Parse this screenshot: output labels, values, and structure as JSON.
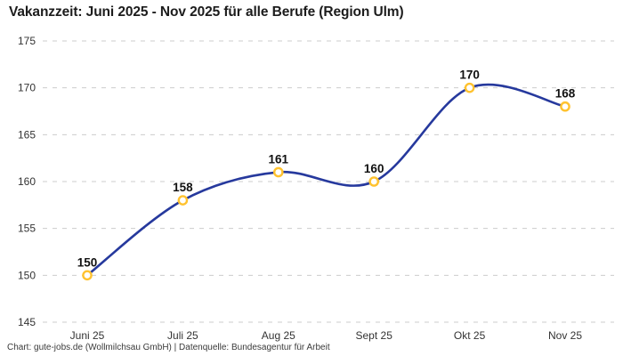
{
  "header": {
    "title": "Vakanzzeit: Juni 2025 - Nov 2025 für alle Berufe (Region Ulm)"
  },
  "footer": {
    "credit": "Chart: gute-jobs.de (Wollmilchsau GmbH) | Datenquelle: Bundesagentur für Arbeit"
  },
  "chart_data": {
    "type": "line",
    "title": "Vakanzzeit: Juni 2025 - Nov 2025 für alle Berufe (Region Ulm)",
    "categories": [
      "Juni 25",
      "Juli 25",
      "Aug 25",
      "Sept 25",
      "Okt 25",
      "Nov 25"
    ],
    "values": [
      150,
      158,
      161,
      160,
      170,
      168
    ],
    "data_labels": true,
    "xlabel": "",
    "ylabel": "",
    "ylim": [
      145,
      175
    ],
    "yticks": [
      145,
      150,
      155,
      160,
      165,
      170,
      175
    ],
    "grid": "horizontal-dashed",
    "legend": "none",
    "smooth": true,
    "colors": {
      "line": "#26399d",
      "marker_stroke": "#ffc22e",
      "marker_fill": "#ffffff",
      "grid": "#cccccc",
      "tick_label": "#333333",
      "data_label": "#111111",
      "title": "#1c1c1c",
      "footer": "#3a3a3a",
      "background": "#ffffff"
    }
  }
}
